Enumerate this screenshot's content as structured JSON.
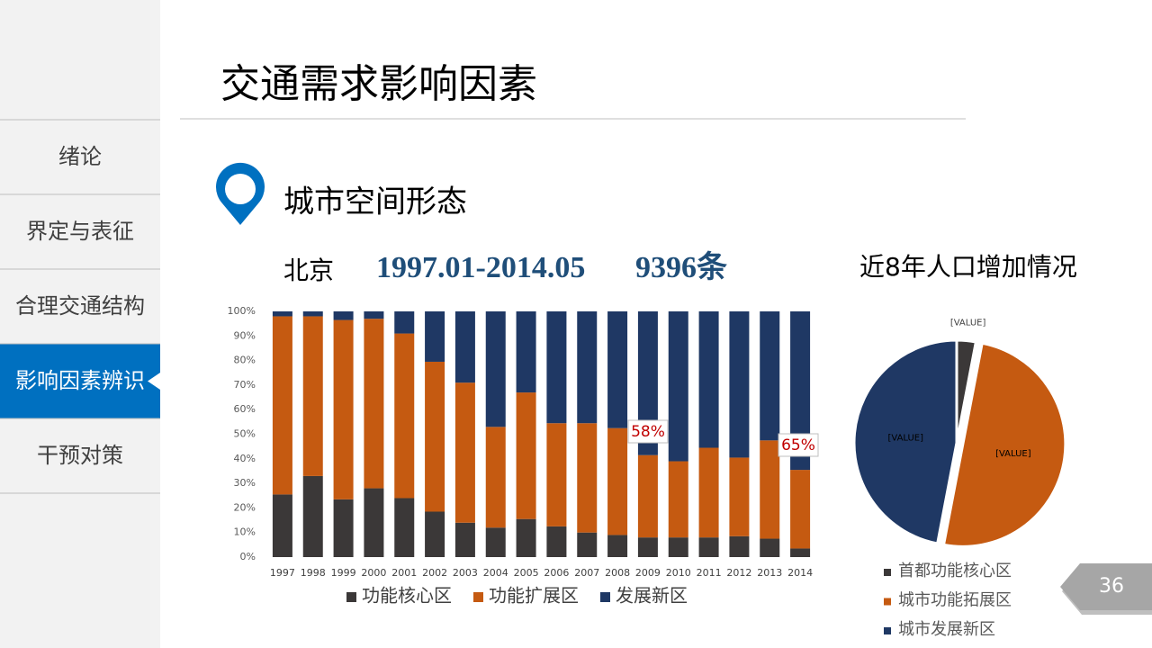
{
  "header": {
    "title": "交通需求影响因素",
    "section": "城市空间形态",
    "city": "北京",
    "period": "1997.01-2014.05",
    "count": "9396条"
  },
  "sidebar": [
    "绪论",
    "界定与表征",
    "合理交通结构",
    "影响因素辨识",
    "干预对策"
  ],
  "active_item": 3,
  "page_number": "36",
  "chart_data": [
    {
      "type": "bar",
      "stacked": true,
      "categories": [
        "1997",
        "1998",
        "1999",
        "2000",
        "2001",
        "2002",
        "2003",
        "2004",
        "2005",
        "2006",
        "2007",
        "2008",
        "2009",
        "2010",
        "2011",
        "2012",
        "2013",
        "2014"
      ],
      "series": [
        {
          "name": "功能核心区",
          "color": "#3b3838",
          "values": [
            25.5,
            33,
            23.5,
            28,
            24,
            18.5,
            14,
            12,
            15.5,
            12.5,
            10,
            9,
            8,
            8,
            8,
            8.5,
            7.5,
            3.5
          ]
        },
        {
          "name": "功能扩展区",
          "color": "#c55a11",
          "values": [
            72.5,
            65,
            73,
            69,
            67,
            61,
            57,
            41,
            51.5,
            42,
            44.5,
            43.5,
            33.5,
            31,
            36.5,
            32,
            40,
            32
          ]
        },
        {
          "name": "发展新区",
          "color": "#1f3864",
          "values": [
            2,
            2,
            3.5,
            3,
            9,
            20.5,
            29,
            47,
            33,
            45.5,
            45.5,
            47.5,
            58.5,
            61,
            55.5,
            59.5,
            52.5,
            64.5
          ]
        }
      ],
      "ylim": [
        0,
        100
      ],
      "yticks": [
        {
          "value": 0,
          "label": "0%"
        },
        {
          "value": 10,
          "label": "10%"
        },
        {
          "value": 20,
          "label": "20%"
        },
        {
          "value": 30,
          "label": "30%"
        },
        {
          "value": 40,
          "label": "40%"
        },
        {
          "value": 50,
          "label": "50%"
        },
        {
          "value": 60,
          "label": "60%"
        },
        {
          "value": 70,
          "label": "70%"
        },
        {
          "value": 80,
          "label": "80%"
        },
        {
          "value": 90,
          "label": "90%"
        },
        {
          "value": 100,
          "label": "100%"
        }
      ],
      "annotations": [
        "58%",
        "65%"
      ]
    },
    {
      "type": "pie",
      "title": "近8年人口增加情况",
      "categories": [
        "首都功能核心区",
        "城市功能拓展区",
        "城市发展新区"
      ],
      "values": [
        3,
        50,
        47
      ],
      "data_labels": [
        "[VALUE]",
        "[VALUE]",
        "[VALUE]"
      ],
      "colors": [
        "#3b3838",
        "#c55a11",
        "#1f3864"
      ]
    }
  ]
}
